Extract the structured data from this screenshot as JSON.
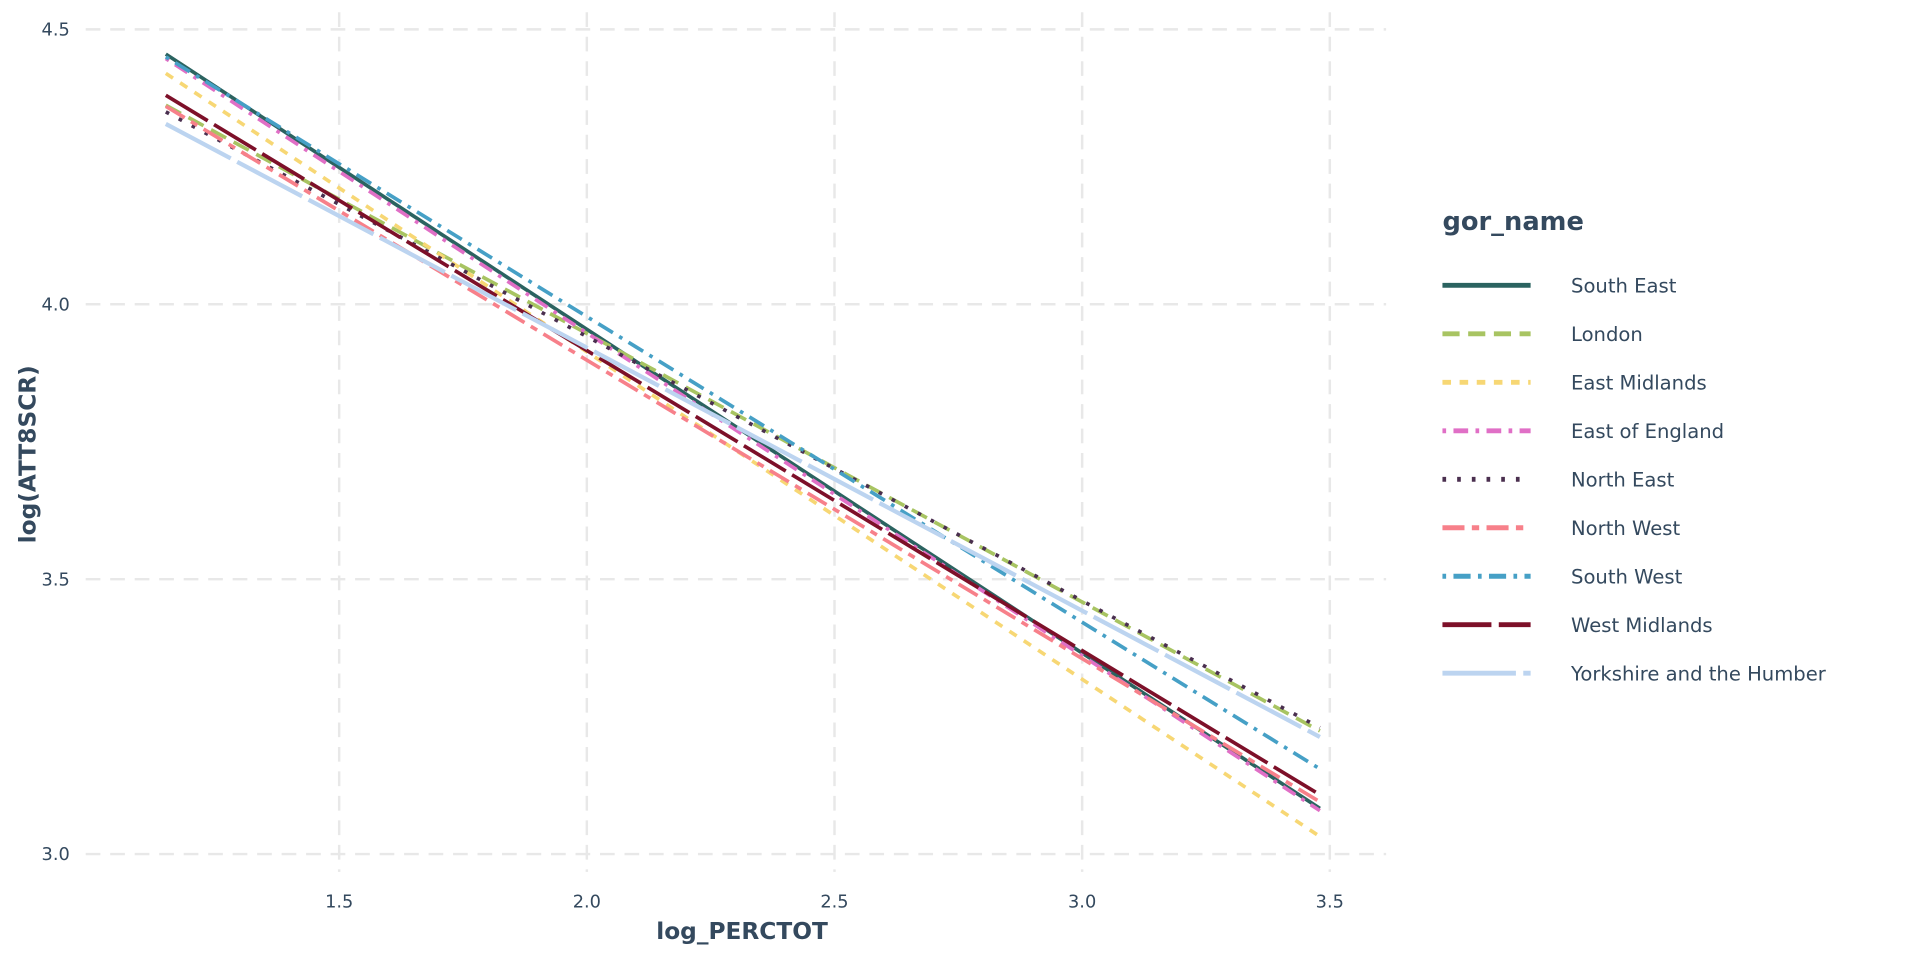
{
  "chart_data": {
    "type": "line",
    "xlabel": "log_PERCTOT",
    "ylabel": "log(ATT8SCR)",
    "xlim": [
      1.1,
      3.6
    ],
    "ylim": [
      2.98,
      4.52
    ],
    "x_ticks": [
      "1.5",
      "2.0",
      "2.5",
      "3.0",
      "3.5"
    ],
    "y_ticks": [
      "3.0",
      "3.5",
      "4.0",
      "4.5"
    ],
    "grid": true,
    "legend": {
      "title": "gor_name",
      "placement": "right"
    },
    "series": [
      {
        "name": "South East",
        "x": [
          1.15,
          3.48
        ],
        "y": [
          4.455,
          3.083
        ],
        "color": "#2b6360",
        "dash": "solid"
      },
      {
        "name": "London",
        "x": [
          1.15,
          3.48
        ],
        "y": [
          4.362,
          3.224
        ],
        "color": "#a8c462",
        "dash": "long-dash"
      },
      {
        "name": "East Midlands",
        "x": [
          1.15,
          3.48
        ],
        "y": [
          4.42,
          3.032
        ],
        "color": "#f7d774",
        "dash": "short-dash"
      },
      {
        "name": "East of England",
        "x": [
          1.15,
          3.48
        ],
        "y": [
          4.447,
          3.079
        ],
        "color": "#e06fc6",
        "dash": "dot-dash"
      },
      {
        "name": "North East",
        "x": [
          1.15,
          3.48
        ],
        "y": [
          4.35,
          3.23
        ],
        "color": "#4a2f4f",
        "dash": "dotted"
      },
      {
        "name": "North West",
        "x": [
          1.15,
          3.48
        ],
        "y": [
          4.36,
          3.095
        ],
        "color": "#f7808a",
        "dash": "long-short"
      },
      {
        "name": "South West",
        "x": [
          1.15,
          3.48
        ],
        "y": [
          4.45,
          3.155
        ],
        "color": "#46a0c6",
        "dash": "dot-long-dash"
      },
      {
        "name": "West Midlands",
        "x": [
          1.15,
          3.48
        ],
        "y": [
          4.38,
          3.108
        ],
        "color": "#7d1029",
        "dash": "two-dash"
      },
      {
        "name": "Yorkshire and the Humber",
        "x": [
          1.15,
          3.48
        ],
        "y": [
          4.328,
          3.213
        ],
        "color": "#bcd4f0",
        "dash": "long-solid"
      }
    ]
  }
}
